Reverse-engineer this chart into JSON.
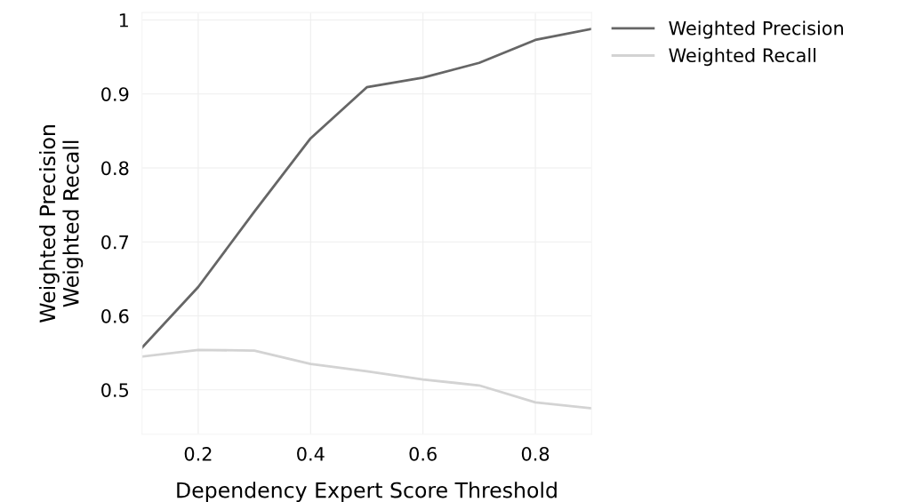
{
  "chart_data": {
    "type": "line",
    "xlabel": "Dependency Expert Score Threshold",
    "ylabel": "Weighted Precision\nWeighted Recall",
    "x": [
      0.1,
      0.2,
      0.3,
      0.4,
      0.5,
      0.6,
      0.7,
      0.8,
      0.9
    ],
    "series": [
      {
        "name": "Weighted Precision",
        "color": "#666666",
        "values": [
          0.557,
          0.639,
          0.741,
          0.84,
          0.909,
          0.922,
          0.942,
          0.973,
          0.988
        ]
      },
      {
        "name": "Weighted Recall",
        "color": "#d3d3d3",
        "values": [
          0.545,
          0.554,
          0.553,
          0.535,
          0.525,
          0.514,
          0.506,
          0.483,
          0.475
        ]
      }
    ],
    "xlim": [
      0.1,
      0.9
    ],
    "ylim": [
      0.44,
      1.01
    ],
    "xticks": [
      0.2,
      0.4,
      0.6,
      0.8
    ],
    "yticks": [
      0.5,
      0.6,
      0.7,
      0.8,
      0.9,
      1
    ],
    "grid": true,
    "legend": "top right"
  }
}
